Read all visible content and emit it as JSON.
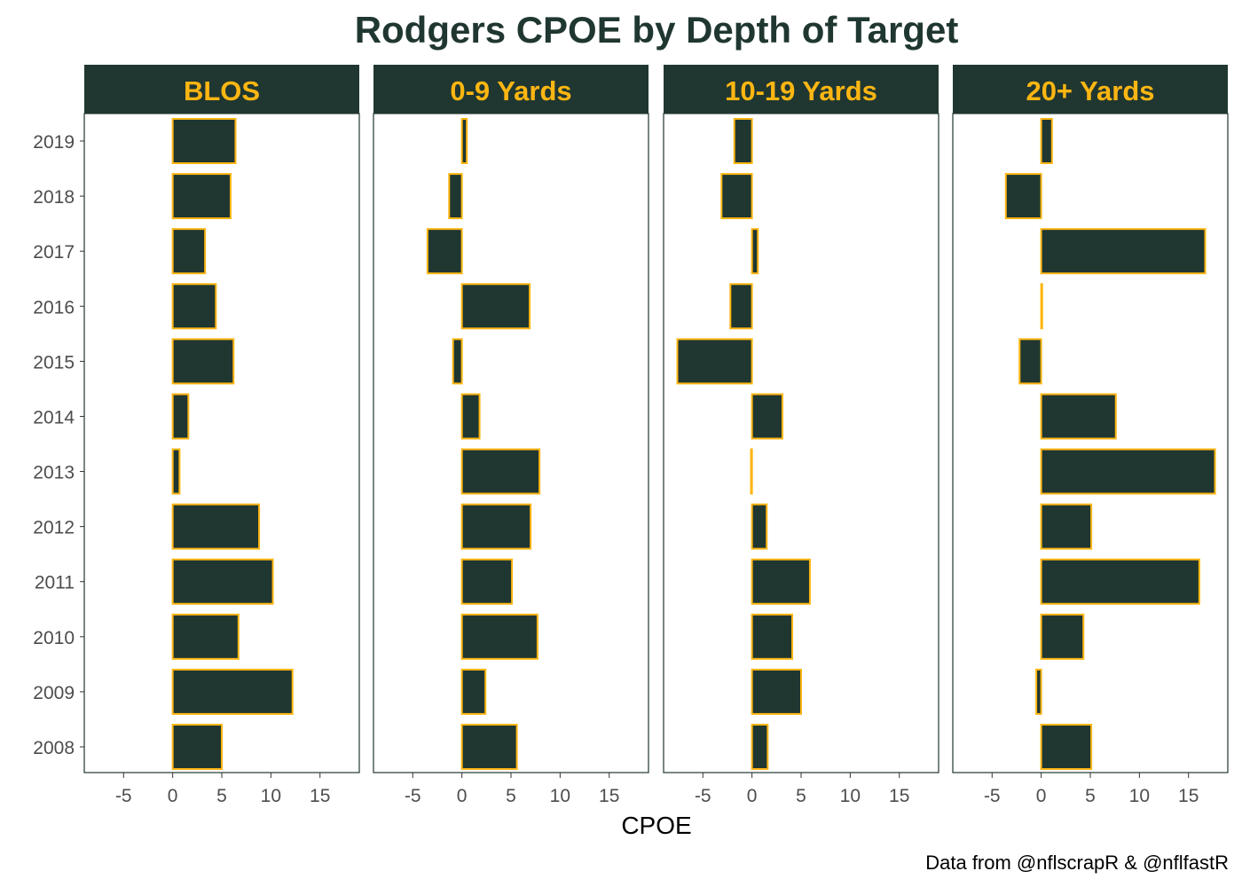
{
  "chart_data": {
    "type": "bar",
    "orientation": "horizontal",
    "title": "Rodgers CPOE by Depth of Target",
    "xlabel": "CPOE",
    "ylabel": "",
    "caption": "Data from @nflscrapR & @nflfastR",
    "xlim": [
      -9,
      19
    ],
    "x_ticks": [
      -5,
      0,
      5,
      10,
      15
    ],
    "x_tick_labels": [
      "-5",
      "0",
      "5",
      "10",
      "15"
    ],
    "categories": [
      "2008",
      "2009",
      "2010",
      "2011",
      "2012",
      "2013",
      "2014",
      "2015",
      "2016",
      "2017",
      "2018",
      "2019"
    ],
    "facets": [
      {
        "name": "BLOS",
        "values": [
          5.0,
          12.2,
          6.7,
          10.2,
          8.8,
          0.7,
          1.6,
          6.2,
          4.4,
          3.3,
          5.9,
          6.4
        ]
      },
      {
        "name": "0-9 Yards",
        "values": [
          5.6,
          2.4,
          7.7,
          5.1,
          7.0,
          7.9,
          1.8,
          -0.9,
          6.9,
          -3.5,
          -1.3,
          0.5
        ]
      },
      {
        "name": "10-19 Yards",
        "values": [
          1.6,
          5.0,
          4.1,
          5.9,
          1.5,
          -0.1,
          3.1,
          -7.6,
          -2.2,
          0.6,
          -3.1,
          -1.8
        ]
      },
      {
        "name": "20+ Yards",
        "values": [
          5.1,
          -0.5,
          4.3,
          16.1,
          5.1,
          17.7,
          7.6,
          -2.2,
          0.1,
          16.7,
          -3.6,
          1.1
        ]
      }
    ],
    "grid": false,
    "legend": "none",
    "colors": {
      "bar_fill": "#203731",
      "bar_outline": "#FFB612",
      "strip_fill": "#203731",
      "strip_text": "#FFB612",
      "title": "#203731",
      "panel_border": "#203731",
      "tick_label": "#4d4d4d"
    }
  }
}
